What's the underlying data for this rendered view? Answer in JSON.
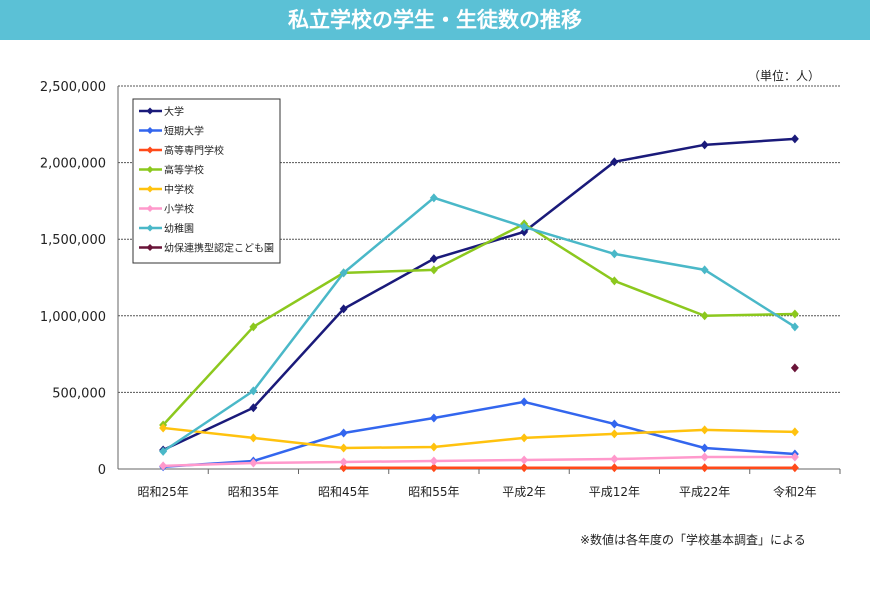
{
  "chart_data": {
    "type": "line",
    "title": "私立学校の学生・生徒数の推移",
    "unit_note": "（単位：人）",
    "source_note": "※数値は各年度の「学校基本調査」による",
    "categories": [
      "昭和25年",
      "昭和35年",
      "昭和45年",
      "昭和55年",
      "平成2年",
      "平成12年",
      "平成22年",
      "令和2年"
    ],
    "ylim": [
      0,
      2500000
    ],
    "yticks": [
      0,
      500000,
      1000000,
      1500000,
      2000000,
      2500000
    ],
    "ytick_labels": [
      "0",
      "500,000",
      "1,000,000",
      "1,500,000",
      "2,000,000",
      "2,500,000"
    ],
    "grid": true,
    "legend_position": "top-left",
    "series": [
      {
        "name": "大学",
        "color": "#1a1a7a",
        "values": [
          124000,
          400000,
          1045000,
          1372000,
          1548000,
          2005000,
          2116000,
          2155000
        ]
      },
      {
        "name": "短期大学",
        "color": "#3366ee",
        "values": [
          15000,
          52000,
          235000,
          333000,
          438000,
          294000,
          137000,
          98000
        ]
      },
      {
        "name": "高等専門学校",
        "color": "#ff4a1a",
        "values": [
          null,
          null,
          8000,
          8000,
          8000,
          8000,
          8000,
          8000
        ]
      },
      {
        "name": "高等学校",
        "color": "#8cc81e",
        "values": [
          287000,
          928000,
          1280000,
          1300000,
          1600000,
          1228000,
          1000000,
          1012000
        ]
      },
      {
        "name": "中学校",
        "color": "#ffc20e",
        "values": [
          268000,
          203000,
          137000,
          144000,
          203000,
          229000,
          255000,
          242000
        ]
      },
      {
        "name": "小学校",
        "color": "#ff99cc",
        "values": [
          20000,
          39000,
          46000,
          52000,
          59000,
          65000,
          78000,
          78000
        ]
      },
      {
        "name": "幼稚園",
        "color": "#4ab8c8",
        "values": [
          115000,
          510000,
          1280000,
          1770000,
          1580000,
          1404000,
          1300000,
          928000
        ]
      },
      {
        "name": "幼保連携型認定こども園",
        "color": "#6a1438",
        "values": [
          null,
          null,
          null,
          null,
          null,
          null,
          null,
          660000
        ]
      }
    ]
  }
}
